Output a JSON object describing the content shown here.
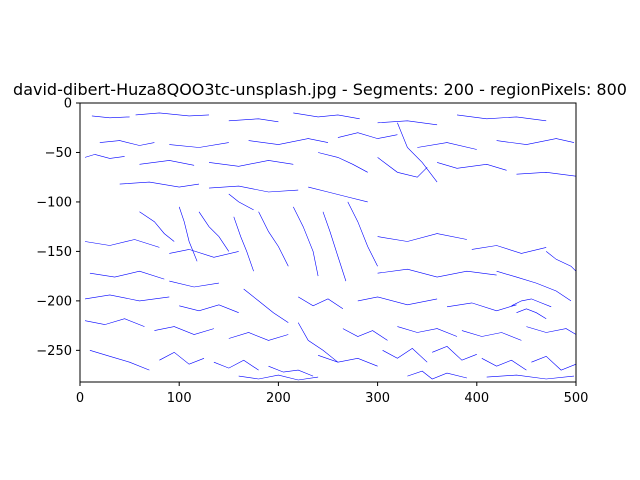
{
  "chart_data": {
    "type": "line",
    "title": "david-dibert-Huza8QOO3tc-unsplash.jpg - Segments: 200 - regionPixels: 800",
    "xlabel": "",
    "ylabel": "",
    "xlim": [
      0,
      500
    ],
    "ylim": [
      -282,
      0
    ],
    "x_ticks": [
      0,
      100,
      200,
      300,
      400,
      500
    ],
    "y_ticks": [
      0,
      -50,
      -100,
      -150,
      -200,
      -250
    ],
    "x_tick_labels": [
      "0",
      "100",
      "200",
      "300",
      "400",
      "500"
    ],
    "y_tick_labels": [
      "0",
      "−50",
      "−100",
      "−150",
      "−200",
      "−250"
    ],
    "grid": false,
    "legend": "none",
    "line_color": "#0000ff",
    "series": [
      {
        "x": [
          12,
          30,
          50
        ],
        "y": [
          -13,
          -15,
          -14
        ]
      },
      {
        "x": [
          56,
          80,
          110,
          130
        ],
        "y": [
          -12,
          -10,
          -13,
          -12
        ]
      },
      {
        "x": [
          150,
          180,
          200
        ],
        "y": [
          -18,
          -16,
          -19
        ]
      },
      {
        "x": [
          215,
          240,
          260,
          282
        ],
        "y": [
          -10,
          -14,
          -12,
          -16
        ]
      },
      {
        "x": [
          300,
          330,
          360
        ],
        "y": [
          -20,
          -18,
          -22
        ]
      },
      {
        "x": [
          380,
          410,
          440,
          470
        ],
        "y": [
          -12,
          -16,
          -14,
          -18
        ]
      },
      {
        "x": [
          20,
          40,
          60,
          75
        ],
        "y": [
          -40,
          -38,
          -43,
          -40
        ]
      },
      {
        "x": [
          90,
          120,
          150
        ],
        "y": [
          -42,
          -45,
          -40
        ]
      },
      {
        "x": [
          170,
          200,
          230,
          250
        ],
        "y": [
          -38,
          -42,
          -36,
          -40
        ]
      },
      {
        "x": [
          260,
          280,
          300,
          320
        ],
        "y": [
          -35,
          -30,
          -36,
          -32
        ]
      },
      {
        "x": [
          340,
          370,
          400
        ],
        "y": [
          -45,
          -40,
          -47
        ]
      },
      {
        "x": [
          420,
          450,
          480,
          498
        ],
        "y": [
          -38,
          -42,
          -36,
          -40
        ]
      },
      {
        "x": [
          5,
          15,
          30,
          45
        ],
        "y": [
          -55,
          -52,
          -56,
          -54
        ]
      },
      {
        "x": [
          60,
          90,
          115
        ],
        "y": [
          -62,
          -58,
          -63
        ]
      },
      {
        "x": [
          130,
          160,
          190,
          215
        ],
        "y": [
          -60,
          -64,
          -58,
          -62
        ]
      },
      {
        "x": [
          240,
          260,
          275,
          290
        ],
        "y": [
          -50,
          -55,
          -62,
          -70
        ]
      },
      {
        "x": [
          300,
          320,
          340,
          350
        ],
        "y": [
          -55,
          -70,
          -75,
          -65
        ]
      },
      {
        "x": [
          320,
          330,
          345,
          360
        ],
        "y": [
          -20,
          -45,
          -60,
          -80
        ]
      },
      {
        "x": [
          360,
          380,
          410,
          430
        ],
        "y": [
          -60,
          -66,
          -62,
          -68
        ]
      },
      {
        "x": [
          440,
          470,
          500
        ],
        "y": [
          -72,
          -70,
          -74
        ]
      },
      {
        "x": [
          40,
          70,
          100,
          120
        ],
        "y": [
          -82,
          -80,
          -85,
          -82
        ]
      },
      {
        "x": [
          130,
          160,
          190,
          220
        ],
        "y": [
          -86,
          -84,
          -90,
          -88
        ]
      },
      {
        "x": [
          230,
          250,
          270,
          290
        ],
        "y": [
          -85,
          -90,
          -95,
          -100
        ]
      },
      {
        "x": [
          150,
          160,
          175
        ],
        "y": [
          -92,
          -100,
          -108
        ]
      },
      {
        "x": [
          60,
          75,
          85,
          95
        ],
        "y": [
          -110,
          -120,
          -132,
          -140
        ]
      },
      {
        "x": [
          100,
          105,
          110,
          118
        ],
        "y": [
          -105,
          -120,
          -140,
          -160
        ]
      },
      {
        "x": [
          120,
          130,
          140,
          150
        ],
        "y": [
          -110,
          -125,
          -135,
          -150
        ]
      },
      {
        "x": [
          155,
          162,
          168,
          175
        ],
        "y": [
          -115,
          -135,
          -150,
          -170
        ]
      },
      {
        "x": [
          180,
          190,
          200,
          210
        ],
        "y": [
          -110,
          -130,
          -145,
          -165
        ]
      },
      {
        "x": [
          215,
          225,
          235,
          240
        ],
        "y": [
          -105,
          -125,
          -150,
          -175
        ]
      },
      {
        "x": [
          245,
          252,
          260,
          268
        ],
        "y": [
          -110,
          -130,
          -155,
          -180
        ]
      },
      {
        "x": [
          270,
          280,
          290,
          300
        ],
        "y": [
          -100,
          -120,
          -145,
          -165
        ]
      },
      {
        "x": [
          5,
          30,
          55,
          80
        ],
        "y": [
          -140,
          -144,
          -138,
          -146
        ]
      },
      {
        "x": [
          90,
          110,
          135,
          160
        ],
        "y": [
          -152,
          -148,
          -156,
          -150
        ]
      },
      {
        "x": [
          300,
          330,
          360,
          390
        ],
        "y": [
          -135,
          -140,
          -132,
          -138
        ]
      },
      {
        "x": [
          395,
          420,
          445,
          470
        ],
        "y": [
          -148,
          -144,
          -152,
          -146
        ]
      },
      {
        "x": [
          470,
          480,
          495,
          500
        ],
        "y": [
          -150,
          -158,
          -165,
          -170
        ]
      },
      {
        "x": [
          10,
          35,
          60,
          85
        ],
        "y": [
          -172,
          -176,
          -170,
          -178
        ]
      },
      {
        "x": [
          90,
          115,
          140
        ],
        "y": [
          -180,
          -186,
          -182
        ]
      },
      {
        "x": [
          300,
          330,
          360,
          390,
          420
        ],
        "y": [
          -172,
          -168,
          -176,
          -170,
          -174
        ]
      },
      {
        "x": [
          420,
          440,
          460,
          480,
          495
        ],
        "y": [
          -170,
          -176,
          -182,
          -190,
          -200
        ]
      },
      {
        "x": [
          5,
          30,
          60,
          90
        ],
        "y": [
          -198,
          -194,
          -200,
          -196
        ]
      },
      {
        "x": [
          100,
          120,
          140,
          160
        ],
        "y": [
          -205,
          -210,
          -204,
          -212
        ]
      },
      {
        "x": [
          165,
          180,
          195,
          210
        ],
        "y": [
          -188,
          -200,
          -212,
          -222
        ]
      },
      {
        "x": [
          220,
          235,
          250,
          265
        ],
        "y": [
          -196,
          -205,
          -198,
          -208
        ]
      },
      {
        "x": [
          280,
          300,
          330,
          360
        ],
        "y": [
          -200,
          -196,
          -204,
          -198
        ]
      },
      {
        "x": [
          370,
          395,
          420,
          440
        ],
        "y": [
          -206,
          -202,
          -210,
          -204
        ]
      },
      {
        "x": [
          435,
          445,
          455,
          465,
          475
        ],
        "y": [
          -205,
          -200,
          -198,
          -202,
          -206
        ]
      },
      {
        "x": [
          440,
          450,
          460,
          470
        ],
        "y": [
          -212,
          -208,
          -212,
          -218
        ]
      },
      {
        "x": [
          5,
          25,
          45,
          65
        ],
        "y": [
          -220,
          -224,
          -218,
          -226
        ]
      },
      {
        "x": [
          75,
          95,
          115,
          135
        ],
        "y": [
          -230,
          -226,
          -234,
          -228
        ]
      },
      {
        "x": [
          150,
          170,
          190,
          210
        ],
        "y": [
          -238,
          -232,
          -240,
          -234
        ]
      },
      {
        "x": [
          220,
          230,
          245,
          260
        ],
        "y": [
          -222,
          -240,
          -250,
          -262
        ]
      },
      {
        "x": [
          265,
          280,
          295,
          310
        ],
        "y": [
          -228,
          -236,
          -230,
          -240
        ]
      },
      {
        "x": [
          320,
          340,
          360,
          380
        ],
        "y": [
          -226,
          -232,
          -228,
          -236
        ]
      },
      {
        "x": [
          385,
          405,
          425,
          445
        ],
        "y": [
          -230,
          -236,
          -232,
          -240
        ]
      },
      {
        "x": [
          450,
          470,
          490,
          500
        ],
        "y": [
          -226,
          -232,
          -228,
          -234
        ]
      },
      {
        "x": [
          10,
          30,
          50,
          70
        ],
        "y": [
          -250,
          -256,
          -262,
          -270
        ]
      },
      {
        "x": [
          80,
          95,
          110,
          125
        ],
        "y": [
          -260,
          -252,
          -264,
          -258
        ]
      },
      {
        "x": [
          135,
          150,
          165,
          180
        ],
        "y": [
          -262,
          -268,
          -260,
          -270
        ]
      },
      {
        "x": [
          190,
          205,
          220,
          235
        ],
        "y": [
          -266,
          -272,
          -270,
          -276
        ]
      },
      {
        "x": [
          240,
          260,
          280,
          300
        ],
        "y": [
          -255,
          -262,
          -258,
          -266
        ]
      },
      {
        "x": [
          305,
          320,
          335,
          350
        ],
        "y": [
          -250,
          -258,
          -248,
          -262
        ]
      },
      {
        "x": [
          355,
          370,
          385,
          400
        ],
        "y": [
          -252,
          -246,
          -260,
          -254
        ]
      },
      {
        "x": [
          405,
          420,
          435,
          450
        ],
        "y": [
          -258,
          -266,
          -260,
          -270
        ]
      },
      {
        "x": [
          455,
          470,
          485,
          500
        ],
        "y": [
          -262,
          -256,
          -270,
          -264
        ]
      },
      {
        "x": [
          160,
          180,
          200,
          220,
          240
        ],
        "y": [
          -276,
          -279,
          -275,
          -280,
          -277
        ]
      },
      {
        "x": [
          330,
          345,
          355,
          370,
          390
        ],
        "y": [
          -276,
          -271,
          -279,
          -273,
          -278
        ]
      },
      {
        "x": [
          410,
          440,
          470,
          498
        ],
        "y": [
          -277,
          -275,
          -279,
          -276
        ]
      }
    ]
  }
}
